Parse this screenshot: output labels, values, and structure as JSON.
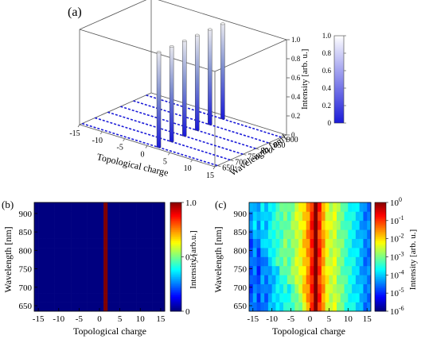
{
  "panels": {
    "a": "(a)",
    "b": "(b)",
    "c": "(c)"
  },
  "chart_data": [
    {
      "panel": "(a)",
      "type": "bar3d",
      "title": "",
      "xlabel": "Topological charge",
      "ylabel": "Wavelength [nm]",
      "zlabel": "Intensity [arb. u.]",
      "x_ticks": [
        "-15",
        "-10",
        "-5",
        "0",
        "5",
        "10",
        "15"
      ],
      "y_ticks": [
        "650",
        "700",
        "750",
        "800",
        "850",
        "900"
      ],
      "z_ticks": [
        "0",
        "0.2",
        "0.4",
        "0.6",
        "0.8",
        "1.0"
      ],
      "xlim": [
        -15,
        15
      ],
      "ylim": [
        640,
        920
      ],
      "zlim": [
        0,
        1
      ],
      "charges": [
        -15,
        -14,
        -13,
        -12,
        -11,
        -10,
        -9,
        -8,
        -7,
        -6,
        -5,
        -4,
        -3,
        -2,
        -1,
        0,
        1,
        2,
        3,
        4,
        5,
        6,
        7,
        8,
        9,
        10,
        11,
        12,
        13,
        14,
        15
      ],
      "wavelengths": [
        650,
        700,
        750,
        800,
        850,
        900
      ],
      "peak_charge": 2,
      "peak_intensity": 1.0,
      "off_peak_intensity": 0.0,
      "colorbar": {
        "ticks": [
          "0",
          "0.2",
          "0.4",
          "0.6",
          "0.8",
          "1.0"
        ],
        "low": "#1a1ad8",
        "high": "#ffffff"
      }
    },
    {
      "panel": "(b)",
      "type": "heatmap",
      "xlabel": "Topological charge",
      "ylabel": "Wavelength [nm]",
      "colorbar_label": "Intensity [arb.u.]",
      "x_ticks": [
        "-15",
        "-10",
        "-5",
        "0",
        "5",
        "10",
        "15"
      ],
      "y_ticks": [
        "650",
        "700",
        "750",
        "800",
        "850",
        "900"
      ],
      "colorbar_ticks": [
        "0",
        "0.5",
        "1.0"
      ],
      "xlim": [
        -16,
        16
      ],
      "ylim": [
        635,
        930
      ],
      "peak_charge": 2,
      "peak_value": 1.0,
      "background_value": 0.0,
      "scale": "linear"
    },
    {
      "panel": "(c)",
      "type": "heatmap",
      "xlabel": "Topological charge",
      "ylabel": "Wavelength [nm]",
      "colorbar_label": "Intensity [arb. u.]",
      "x_ticks": [
        "-15",
        "-10",
        "-5",
        "0",
        "5",
        "10",
        "15"
      ],
      "y_ticks": [
        "650",
        "700",
        "750",
        "800",
        "850",
        "900"
      ],
      "colorbar_ticks": [
        "0",
        "-1",
        "-2",
        "-3",
        "-4",
        "-5",
        "-6"
      ],
      "colorbar_tick_base": "10",
      "xlim": [
        -16,
        16
      ],
      "ylim": [
        635,
        930
      ],
      "scale": "log",
      "peak_charge": 2,
      "peak_value": 1.0,
      "log_intensity_profile_by_charge": {
        "-15": -4.3,
        "-14": -4.0,
        "-13": -4.4,
        "-12": -3.9,
        "-11": -4.1,
        "-10": -3.8,
        "-9": -3.6,
        "-8": -3.4,
        "-7": -3.3,
        "-6": -3.0,
        "-5": -3.2,
        "-4": -2.9,
        "-3": -2.6,
        "-2": -2.4,
        "-1": -2.0,
        "0": -1.6,
        "1": -0.9,
        "2": 0.0,
        "3": -1.0,
        "4": -1.7,
        "5": -2.3,
        "6": -2.6,
        "7": -2.5,
        "8": -2.9,
        "9": -3.1,
        "10": -3.4,
        "11": -3.6,
        "12": -3.8,
        "13": -4.0,
        "14": -4.2,
        "15": -4.5
      }
    }
  ]
}
